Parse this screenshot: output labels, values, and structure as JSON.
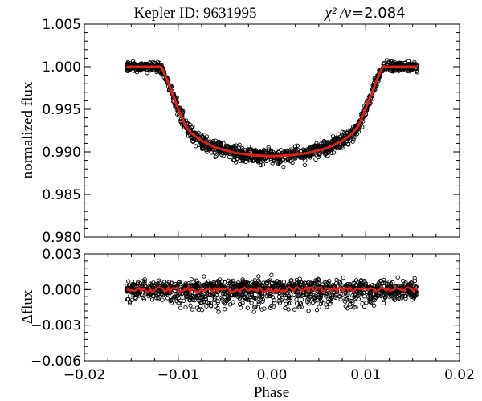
{
  "chart_data": [
    {
      "type": "scatter",
      "name": "light-curve",
      "title_left": "Kepler  ID: 9631995",
      "title_right_symbol": "χ² /ν",
      "title_right_value": "=2.084",
      "ylabel": "normalized  flux",
      "xlim": [
        -0.02,
        0.02
      ],
      "ylim": [
        0.98,
        1.005
      ],
      "yticks": [
        0.98,
        0.985,
        0.99,
        0.995,
        1.0,
        1.005
      ],
      "ytick_labels": [
        "0.980",
        "0.985",
        "0.990",
        "0.995",
        "1.000",
        "1.005"
      ],
      "series": [
        {
          "name": "observations",
          "style": "open-circles",
          "x_range": [
            -0.0155,
            0.0155
          ],
          "baseline": 1.0,
          "depth": 0.0106,
          "scatter": 0.0009
        },
        {
          "name": "transit-model",
          "style": "line",
          "color": "#e3201b",
          "x": [
            -0.0155,
            -0.0118,
            -0.0112,
            -0.0105,
            -0.0098,
            -0.0092,
            -0.0085,
            -0.0075,
            -0.006,
            -0.004,
            -0.002,
            0.0,
            0.002,
            0.004,
            0.006,
            0.0075,
            0.0085,
            0.0092,
            0.0098,
            0.0105,
            0.0112,
            0.0118,
            0.0155
          ],
          "y": [
            1.0,
            1.0,
            0.9985,
            0.9965,
            0.9945,
            0.993,
            0.9921,
            0.9913,
            0.9905,
            0.9899,
            0.9896,
            0.9895,
            0.9896,
            0.9899,
            0.9905,
            0.9913,
            0.9921,
            0.993,
            0.9945,
            0.9965,
            0.9985,
            1.0,
            1.0
          ]
        }
      ]
    },
    {
      "type": "scatter",
      "name": "residuals",
      "ylabel": "Δflux",
      "xlabel": "Phase",
      "xlim": [
        -0.02,
        0.02
      ],
      "ylim": [
        -0.006,
        0.003
      ],
      "xticks": [
        -0.02,
        -0.01,
        0.0,
        0.01,
        0.02
      ],
      "xtick_labels": [
        "−0.02",
        "−0.01",
        "0.00",
        "0.01",
        "0.02"
      ],
      "yticks": [
        -0.006,
        -0.003,
        0.0,
        0.003
      ],
      "ytick_labels": [
        "−0.006",
        "−0.003",
        "0.000",
        "0.003"
      ],
      "series": [
        {
          "name": "residuals",
          "style": "open-circles",
          "x_range": [
            -0.0155,
            0.0155
          ],
          "center": 0.0,
          "scatter": 0.0011
        },
        {
          "name": "binned-residuals",
          "style": "line",
          "color": "#e3201b",
          "x_range": [
            -0.0155,
            0.0155
          ],
          "center": 0.0,
          "amplitude": 0.0002
        }
      ]
    }
  ]
}
